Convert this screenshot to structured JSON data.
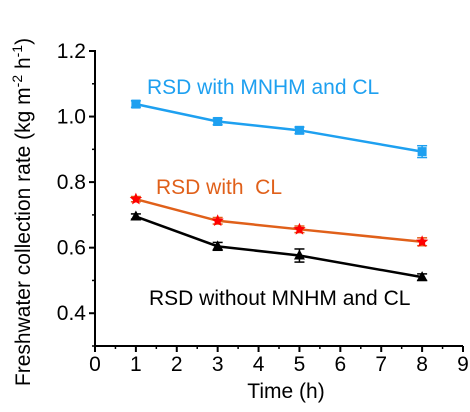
{
  "chart_data": {
    "type": "line",
    "title": "",
    "xlabel": "Time (h)",
    "ylabel": "Freshwater collection rate (kg m",
    "ylabel_sup1": "-2",
    "ylabel_mid": " h",
    "ylabel_sup2": "-1",
    "ylabel_end": ")",
    "xlim": [
      0,
      9
    ],
    "ylim": [
      0.3,
      1.2
    ],
    "xticks": [
      0,
      1,
      2,
      3,
      4,
      5,
      6,
      7,
      8,
      9
    ],
    "yticks": [
      0.4,
      0.6,
      0.8,
      1.0,
      1.2
    ],
    "ytick_labels": [
      "0.4",
      "0.6",
      "0.8",
      "1.0",
      "1.2"
    ],
    "grid": false,
    "legend": "inline series labels",
    "series": [
      {
        "name": "RSD with MNHM and CL",
        "color": "#1ea0f0",
        "marker": "square",
        "x": [
          1,
          3,
          5,
          8
        ],
        "y": [
          1.038,
          0.985,
          0.958,
          0.893
        ],
        "err": [
          0.01,
          0.01,
          0.01,
          0.018
        ]
      },
      {
        "name": "RSD with  CL",
        "color": "#e0601a",
        "marker_color": "#ff0000",
        "marker": "star",
        "x": [
          1,
          3,
          5,
          8
        ],
        "y": [
          0.748,
          0.682,
          0.656,
          0.618
        ],
        "err": [
          0.008,
          0.01,
          0.01,
          0.012
        ]
      },
      {
        "name": "RSD without MNHM and CL",
        "color": "#000000",
        "marker": "triangle",
        "x": [
          1,
          3,
          5,
          8
        ],
        "y": [
          0.695,
          0.604,
          0.576,
          0.51
        ],
        "err": [
          0.008,
          0.012,
          0.02,
          0.01
        ]
      }
    ]
  }
}
